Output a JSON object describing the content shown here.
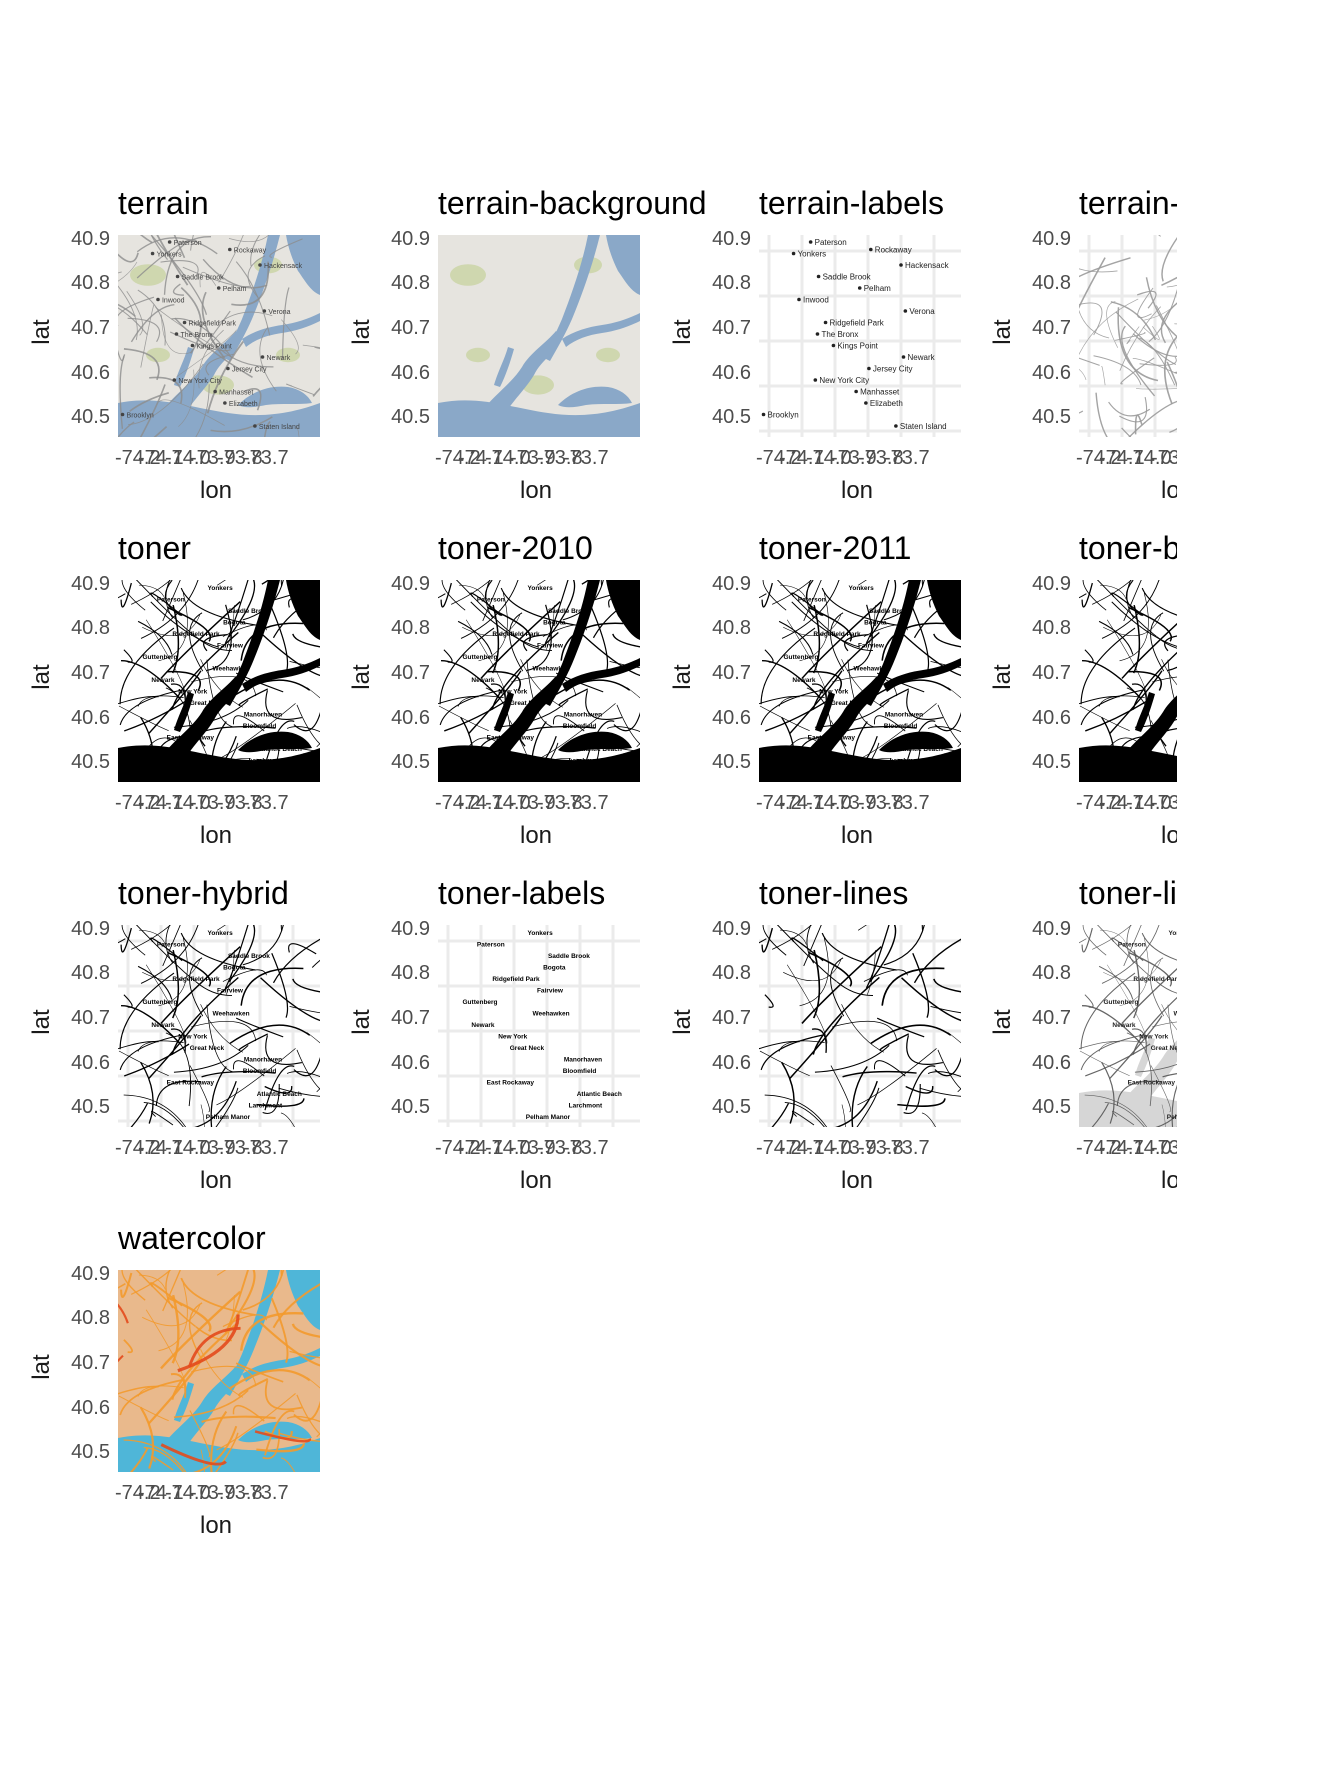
{
  "axes": {
    "xlabel": "lon",
    "ylabel": "lat",
    "xticks": [
      "-74.2",
      "-74.1",
      "-74.0",
      "-73.9",
      "-73.8",
      "-73.7"
    ],
    "yticks": [
      "40.9",
      "40.8",
      "40.7",
      "40.6",
      "40.5"
    ]
  },
  "panels": [
    {
      "title": "terrain",
      "style": "terrain"
    },
    {
      "title": "terrain-background",
      "style": "terrain-background"
    },
    {
      "title": "terrain-labels",
      "style": "terrain-labels"
    },
    {
      "title": "terrain-lines",
      "style": "terrain-lines"
    },
    {
      "title": "toner",
      "style": "toner"
    },
    {
      "title": "toner-2010",
      "style": "toner"
    },
    {
      "title": "toner-2011",
      "style": "toner"
    },
    {
      "title": "toner-background",
      "style": "toner-background"
    },
    {
      "title": "toner-hybrid",
      "style": "toner-hybrid"
    },
    {
      "title": "toner-labels",
      "style": "toner-labels"
    },
    {
      "title": "toner-lines",
      "style": "toner-lines"
    },
    {
      "title": "toner-lite",
      "style": "toner-lite"
    },
    {
      "title": "watercolor",
      "style": "watercolor"
    }
  ],
  "place_labels": {
    "terrain": [
      "Paterson",
      "Yonkers",
      "Hackensack",
      "Saddle Brook",
      "Pelham",
      "Inwood",
      "Verona",
      "Ridgefield Park",
      "The Bronx",
      "Kings Point",
      "Newark",
      "Jersey City",
      "New York City",
      "Manhasset",
      "Elizabeth",
      "Brooklyn",
      "Staten Island",
      "Rockaway"
    ],
    "toner": [
      "Yonkers",
      "Paterson",
      "Saddle Brook",
      "Bogota",
      "Ridgefield Park",
      "Fairview",
      "Guttenberg",
      "Weehawken",
      "Newark",
      "New York",
      "Great Neck",
      "Manorhaven",
      "Bloomfield",
      "East Rockaway",
      "Atlantic Beach",
      "Larchmont",
      "Pelham Manor"
    ]
  },
  "colors": {
    "water_terrain": "#8aa8c8",
    "land_terrain": "#e6e4df",
    "green_terrain": "#c9d3a3",
    "toner_black": "#000000",
    "toner_lite_water": "#d6d6d6",
    "watercolor_land": "#e9b98c",
    "watercolor_water": "#4fb6d8",
    "watercolor_roads": "#f39a2c",
    "gridline": "#ebebeb"
  }
}
